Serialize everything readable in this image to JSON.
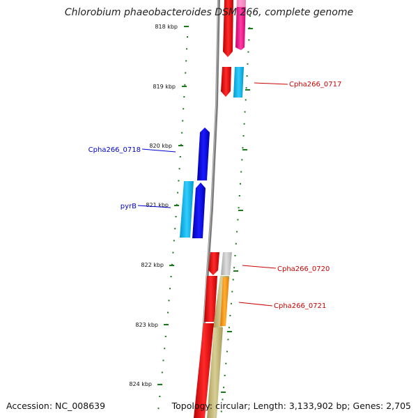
{
  "title": "Chlorobium phaeobacteroides DSM 266, complete genome",
  "footer": {
    "accession": "Accession: NC_008639",
    "summary": "Topology: circular; Length: 3,133,902 bp; Genes: 2,705"
  },
  "ticks": [
    {
      "label": "818 kbp",
      "kbp": 818
    },
    {
      "label": "819 kbp",
      "kbp": 819
    },
    {
      "label": "820 kbp",
      "kbp": 820
    },
    {
      "label": "821 kbp",
      "kbp": 821
    },
    {
      "label": "822 kbp",
      "kbp": 822
    },
    {
      "label": "823 kbp",
      "kbp": 823
    },
    {
      "label": "824 kbp",
      "kbp": 824
    }
  ],
  "gene_labels": [
    {
      "name": "Cpha266_0717",
      "side": "right",
      "color": "#cc0000"
    },
    {
      "name": "Cpha266_0718",
      "side": "left",
      "color": "#0000cc"
    },
    {
      "name": "pyrB",
      "side": "left",
      "color": "#0000cc"
    },
    {
      "name": "Cpha266_0720",
      "side": "right",
      "color": "#cc0000"
    },
    {
      "name": "Cpha266_0721",
      "side": "right",
      "color": "#cc0000"
    }
  ],
  "colors": {
    "backbone": "#8a8a8a",
    "tick": "#1a7a1a",
    "red": "#ff0000",
    "magenta": "#ff1493",
    "cyan": "#00bfff",
    "blue": "#0000ee",
    "gray": "#c0c0c0",
    "orange": "#ff9900",
    "khaki": "#c8bd7a"
  }
}
